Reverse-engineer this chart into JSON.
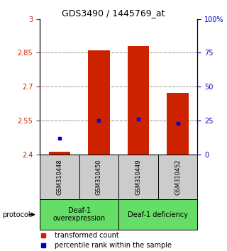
{
  "title": "GDS3490 / 1445769_at",
  "samples": [
    "GSM310448",
    "GSM310450",
    "GSM310449",
    "GSM310452"
  ],
  "red_values": [
    2.412,
    2.862,
    2.878,
    2.673
  ],
  "blue_values": [
    2.47,
    2.549,
    2.556,
    2.537
  ],
  "ylim": [
    2.4,
    3.0
  ],
  "yticks_left": [
    2.4,
    2.55,
    2.7,
    2.85,
    3.0
  ],
  "yticks_left_labels": [
    "2.4",
    "2.55",
    "2.7",
    "2.85",
    "3"
  ],
  "yticks_right_vals": [
    0,
    25,
    50,
    75,
    100
  ],
  "yticks_right_labels": [
    "0",
    "25",
    "50",
    "75",
    "100%"
  ],
  "grid_lines": [
    2.55,
    2.7,
    2.85
  ],
  "group1_label": "Deaf-1\noverexpression",
  "group2_label": "Deaf-1 deficiency",
  "group1_samples": [
    0,
    1
  ],
  "group2_samples": [
    2,
    3
  ],
  "group_color": "#66dd66",
  "sample_box_color": "#cccccc",
  "protocol_label": "protocol",
  "bar_color": "#cc2200",
  "dot_color": "#0000cc",
  "bar_width": 0.55,
  "baseline": 2.4,
  "left_tick_color": "#cc2200",
  "right_tick_color": "#0000cc",
  "title_fontsize": 9,
  "tick_fontsize": 7,
  "sample_fontsize": 6,
  "group_fontsize": 7,
  "legend_fontsize": 7
}
